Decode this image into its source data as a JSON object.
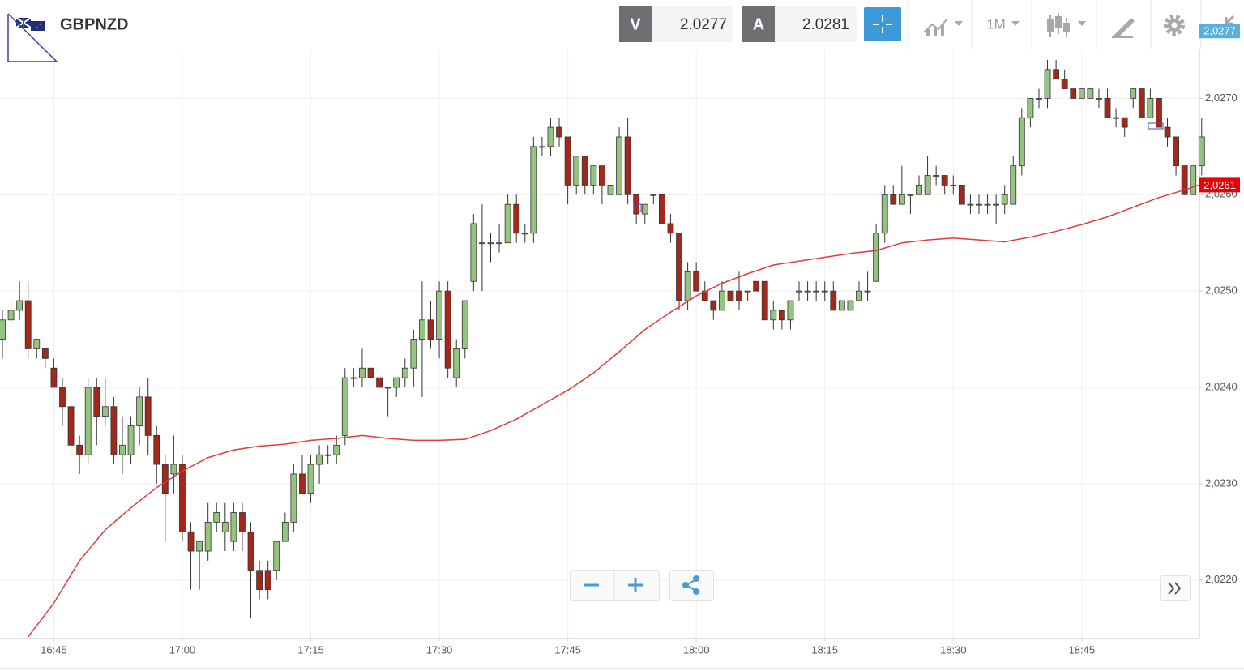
{
  "header": {
    "symbol": "GBPNZD",
    "bid_label": "V",
    "bid": 2.0277,
    "ask_label": "A",
    "ask": 2.0281,
    "timeframe": "1M"
  },
  "chart_data": {
    "type": "candlestick",
    "x": [
      "16:39",
      "16:40",
      "16:41",
      "16:42",
      "16:43",
      "16:44",
      "16:45",
      "16:46",
      "16:47",
      "16:48",
      "16:49",
      "16:50",
      "16:51",
      "16:52",
      "16:53",
      "16:54",
      "16:55",
      "16:56",
      "16:57",
      "16:58",
      "16:59",
      "17:00",
      "17:01",
      "17:02",
      "17:03",
      "17:04",
      "17:05",
      "17:06",
      "17:07",
      "17:08",
      "17:09",
      "17:10",
      "17:11",
      "17:12",
      "17:13",
      "17:14",
      "17:15",
      "17:16",
      "17:17",
      "17:18",
      "17:19",
      "17:20",
      "17:21",
      "17:22",
      "17:23",
      "17:24",
      "17:25",
      "17:26",
      "17:27",
      "17:28",
      "17:29",
      "17:30",
      "17:31",
      "17:32",
      "17:33",
      "17:34",
      "17:35",
      "17:36",
      "17:37",
      "17:38",
      "17:39",
      "17:40",
      "17:41",
      "17:42",
      "17:43",
      "17:44",
      "17:45",
      "17:46",
      "17:47",
      "17:48",
      "17:49",
      "17:50",
      "17:51",
      "17:52",
      "17:53",
      "17:54",
      "17:55",
      "17:56",
      "17:57",
      "17:58",
      "17:59",
      "18:00",
      "18:01",
      "18:02",
      "18:03",
      "18:04",
      "18:05",
      "18:06",
      "18:07",
      "18:08",
      "18:09",
      "18:10",
      "18:11",
      "18:12",
      "18:13",
      "18:14",
      "18:15",
      "18:16",
      "18:17",
      "18:18",
      "18:19",
      "18:20",
      "18:21",
      "18:22",
      "18:23",
      "18:24",
      "18:25",
      "18:26",
      "18:27",
      "18:28",
      "18:29",
      "18:30",
      "18:31",
      "18:32",
      "18:33",
      "18:34",
      "18:35",
      "18:36",
      "18:37",
      "18:38",
      "18:39",
      "18:40",
      "18:41",
      "18:42",
      "18:43",
      "18:44",
      "18:45",
      "18:46",
      "18:47",
      "18:48",
      "18:49",
      "18:50",
      "18:51",
      "18:52",
      "18:53",
      "18:54",
      "18:55",
      "18:56",
      "18:57",
      "18:58",
      "18:59"
    ],
    "open": [
      2.0245,
      2.0247,
      2.0248,
      2.0249,
      2.0244,
      2.0244,
      2.0242,
      2.024,
      2.0238,
      2.0234,
      2.0233,
      2.024,
      2.0237,
      2.0238,
      2.0233,
      2.0233,
      2.0236,
      2.0239,
      2.0235,
      2.0232,
      2.0231,
      2.0232,
      2.0225,
      2.0223,
      2.0223,
      2.0226,
      2.0225,
      2.0224,
      2.0227,
      2.0225,
      2.0221,
      2.0221,
      2.0221,
      2.0224,
      2.0226,
      2.0231,
      2.0229,
      2.0232,
      2.0233,
      2.0233,
      2.0235,
      2.0241,
      2.0241,
      2.0242,
      2.0241,
      2.024,
      2.024,
      2.0241,
      2.0242,
      2.0245,
      2.0247,
      2.0245,
      2.025,
      2.0241,
      2.0244,
      2.0251,
      2.0255,
      2.0255,
      2.0255,
      2.0255,
      2.0259,
      2.0256,
      2.0256,
      2.0265,
      2.0265,
      2.0267,
      2.0266,
      2.0261,
      2.0264,
      2.0261,
      2.0263,
      2.026,
      2.026,
      2.0266,
      2.026,
      2.0258,
      2.026,
      2.026,
      2.0257,
      2.0256,
      2.0249,
      2.0252,
      2.025,
      2.0249,
      2.0248,
      2.025,
      2.025,
      2.025,
      2.0251,
      2.0251,
      2.0247,
      2.0248,
      2.0247,
      2.025,
      2.025,
      2.025,
      2.025,
      2.025,
      2.0248,
      2.0248,
      2.0249,
      2.025,
      2.0251,
      2.0256,
      2.026,
      2.0259,
      2.026,
      2.026,
      2.026,
      2.0262,
      2.0262,
      2.0261,
      2.0261,
      2.0259,
      2.0259,
      2.0259,
      2.0259,
      2.0259,
      2.0259,
      2.0263,
      2.0268,
      2.027,
      2.027,
      2.0273,
      2.0272,
      2.0271,
      2.027,
      2.027,
      2.027,
      2.027,
      2.0268,
      2.0268,
      2.027,
      2.0271,
      2.0268,
      2.027,
      2.0267,
      2.0266,
      2.0263,
      2.026,
      2.0263
    ],
    "high": [
      2.0248,
      2.0249,
      2.0251,
      2.0251,
      2.0245,
      2.0244,
      2.0243,
      2.0241,
      2.0239,
      2.0235,
      2.0241,
      2.0241,
      2.0241,
      2.0239,
      2.0237,
      2.0237,
      2.024,
      2.0241,
      2.0236,
      2.0233,
      2.0235,
      2.0233,
      2.0226,
      2.0224,
      2.0228,
      2.0228,
      2.0228,
      2.0228,
      2.0228,
      2.0226,
      2.0222,
      2.0222,
      2.0224,
      2.0227,
      2.0232,
      2.0233,
      2.0233,
      2.0234,
      2.0234,
      2.0235,
      2.0242,
      2.0242,
      2.0244,
      2.0242,
      2.0241,
      2.024,
      2.0241,
      2.0243,
      2.0246,
      2.0251,
      2.0249,
      2.0251,
      2.0251,
      2.0245,
      2.0249,
      2.0258,
      2.0259,
      2.0256,
      2.0257,
      2.026,
      2.026,
      2.0257,
      2.0266,
      2.0266,
      2.0268,
      2.0268,
      2.0266,
      2.0264,
      2.0264,
      2.0263,
      2.0263,
      2.0261,
      2.0267,
      2.0268,
      2.026,
      2.0259,
      2.026,
      2.026,
      2.0258,
      2.0256,
      2.0253,
      2.0253,
      2.0251,
      2.0249,
      2.0251,
      2.025,
      2.0252,
      2.025,
      2.0251,
      2.0251,
      2.0249,
      2.0248,
      2.0249,
      2.0251,
      2.0251,
      2.0251,
      2.0251,
      2.0251,
      2.0249,
      2.0249,
      2.0251,
      2.0252,
      2.0257,
      2.0261,
      2.0261,
      2.0263,
      2.026,
      2.0262,
      2.0264,
      2.0263,
      2.0262,
      2.0262,
      2.0261,
      2.026,
      2.026,
      2.026,
      2.026,
      2.0261,
      2.0264,
      2.0269,
      2.027,
      2.0271,
      2.0274,
      2.0274,
      2.0273,
      2.0271,
      2.0271,
      2.0271,
      2.0271,
      2.0271,
      2.0269,
      2.0268,
      2.0271,
      2.0271,
      2.0271,
      2.027,
      2.0268,
      2.0266,
      2.0263,
      2.0263,
      2.0268
    ],
    "low": [
      2.0243,
      2.0246,
      2.0247,
      2.0243,
      2.0243,
      2.0242,
      2.024,
      2.0236,
      2.0233,
      2.0231,
      2.0232,
      2.0234,
      2.0236,
      2.0232,
      2.0231,
      2.0232,
      2.0234,
      2.0233,
      2.023,
      2.0224,
      2.0229,
      2.0224,
      2.0219,
      2.0219,
      2.0222,
      2.0225,
      2.0223,
      2.0223,
      2.0223,
      2.0216,
      2.0218,
      2.0218,
      2.022,
      2.0224,
      2.0225,
      2.0229,
      2.0228,
      2.023,
      2.0232,
      2.0232,
      2.0234,
      2.024,
      2.024,
      2.0241,
      2.024,
      2.0237,
      2.0239,
      2.024,
      2.024,
      2.0239,
      2.0244,
      2.0243,
      2.0241,
      2.024,
      2.0243,
      2.025,
      2.025,
      2.0253,
      2.0254,
      2.0255,
      2.0255,
      2.0255,
      2.0255,
      2.0264,
      2.0264,
      2.0265,
      2.0259,
      2.026,
      2.026,
      2.026,
      2.0259,
      2.026,
      2.026,
      2.0259,
      2.0257,
      2.0257,
      2.0259,
      2.0257,
      2.0255,
      2.0248,
      2.0248,
      2.025,
      2.0249,
      2.0247,
      2.0248,
      2.0249,
      2.0248,
      2.0249,
      2.025,
      2.0247,
      2.0246,
      2.0246,
      2.0246,
      2.0249,
      2.0249,
      2.0249,
      2.0249,
      2.0248,
      2.0248,
      2.0248,
      2.0249,
      2.0249,
      2.0251,
      2.0255,
      2.0259,
      2.0259,
      2.0258,
      2.026,
      2.026,
      2.0261,
      2.026,
      2.026,
      2.0259,
      2.0258,
      2.0258,
      2.0258,
      2.0257,
      2.0258,
      2.0259,
      2.0262,
      2.0267,
      2.0269,
      2.0269,
      2.0272,
      2.0271,
      2.027,
      2.027,
      2.027,
      2.0269,
      2.0268,
      2.0267,
      2.0266,
      2.0269,
      2.0268,
      2.0268,
      2.0267,
      2.0265,
      2.0262,
      2.026,
      2.026,
      2.0262
    ],
    "close": [
      2.0247,
      2.0248,
      2.0249,
      2.0244,
      2.0245,
      2.0243,
      2.024,
      2.0238,
      2.0234,
      2.0233,
      2.024,
      2.0237,
      2.0238,
      2.0233,
      2.0234,
      2.0236,
      2.0239,
      2.0235,
      2.0232,
      2.0229,
      2.0232,
      2.0225,
      2.0223,
      2.0224,
      2.0226,
      2.0227,
      2.0226,
      2.0227,
      2.0225,
      2.0221,
      2.0219,
      2.0219,
      2.0224,
      2.0226,
      2.0231,
      2.0229,
      2.0232,
      2.0233,
      2.0233,
      2.0234,
      2.0241,
      2.0241,
      2.0242,
      2.0241,
      2.024,
      2.024,
      2.0241,
      2.0242,
      2.0245,
      2.0247,
      2.0245,
      2.025,
      2.0242,
      2.0244,
      2.0249,
      2.0257,
      2.0255,
      2.0255,
      2.0255,
      2.0259,
      2.0256,
      2.0256,
      2.0265,
      2.0265,
      2.0267,
      2.0266,
      2.0261,
      2.0264,
      2.0261,
      2.0263,
      2.0261,
      2.0261,
      2.0266,
      2.026,
      2.0258,
      2.0259,
      2.026,
      2.0257,
      2.0256,
      2.0249,
      2.0252,
      2.025,
      2.0249,
      2.0248,
      2.025,
      2.0249,
      2.0249,
      2.025,
      2.025,
      2.0247,
      2.0248,
      2.0247,
      2.0249,
      2.025,
      2.025,
      2.025,
      2.025,
      2.0248,
      2.0249,
      2.0249,
      2.025,
      2.025,
      2.0256,
      2.026,
      2.0259,
      2.026,
      2.026,
      2.0261,
      2.0262,
      2.0262,
      2.0261,
      2.0261,
      2.0259,
      2.0259,
      2.0259,
      2.0259,
      2.0259,
      2.026,
      2.0263,
      2.0268,
      2.027,
      2.027,
      2.0273,
      2.0272,
      2.0271,
      2.027,
      2.0271,
      2.0271,
      2.027,
      2.0268,
      2.0268,
      2.0267,
      2.0271,
      2.0268,
      2.027,
      2.0267,
      2.0266,
      2.0263,
      2.026,
      2.0263,
      2.0266
    ],
    "up_color": "#95c47f",
    "down_color": "#a3281c",
    "wick_color": "#333333",
    "moving_average": {
      "color": "#e23b3b",
      "x": [
        "16:42",
        "16:45",
        "16:48",
        "16:51",
        "16:54",
        "16:57",
        "17:00",
        "17:03",
        "17:06",
        "17:09",
        "17:12",
        "17:15",
        "17:18",
        "17:21",
        "17:24",
        "17:27",
        "17:30",
        "17:33",
        "17:36",
        "17:39",
        "17:42",
        "17:45",
        "17:48",
        "17:51",
        "17:54",
        "17:57",
        "18:00",
        "18:03",
        "18:06",
        "18:09",
        "18:12",
        "18:15",
        "18:18",
        "18:21",
        "18:24",
        "18:27",
        "18:30",
        "18:33",
        "18:36",
        "18:39",
        "18:42",
        "18:45",
        "18:48",
        "18:51",
        "18:54",
        "18:57",
        "18:59"
      ],
      "values": [
        2.02141,
        2.02176,
        2.0222,
        2.02252,
        2.02275,
        2.02296,
        2.02313,
        2.02327,
        2.02335,
        2.02339,
        2.02341,
        2.02345,
        2.02347,
        2.0235,
        2.02347,
        2.02345,
        2.02345,
        2.02346,
        2.02355,
        2.02367,
        2.02382,
        2.02397,
        2.02415,
        2.02437,
        2.0246,
        2.02478,
        2.02495,
        2.02508,
        2.02518,
        2.02527,
        2.02531,
        2.02535,
        2.02539,
        2.02542,
        2.0255,
        2.02553,
        2.02555,
        2.02553,
        2.02551,
        2.02556,
        2.02562,
        2.02569,
        2.02577,
        2.02587,
        2.02597,
        2.02605,
        2.02611
      ]
    },
    "xticks": [
      "16:45",
      "17:00",
      "17:15",
      "17:30",
      "17:45",
      "18:00",
      "18:15",
      "18:30",
      "18:45"
    ],
    "ylim": [
      2.0214,
      2.0275
    ],
    "yticks": [
      {
        "value": 2.022,
        "label": "2,0220"
      },
      {
        "value": 2.023,
        "label": "2,0230"
      },
      {
        "value": 2.024,
        "label": "2,0240"
      },
      {
        "value": 2.025,
        "label": "2,0250"
      },
      {
        "value": 2.026,
        "label": "2,0260"
      },
      {
        "value": 2.027,
        "label": "2,0270"
      }
    ],
    "price_tags": [
      {
        "value": 2.0277,
        "label": "2,0277",
        "color": "#5ab0dd"
      },
      {
        "value": 2.0261,
        "label": "2,0261",
        "color": "#e8000b"
      }
    ],
    "grid": true
  }
}
